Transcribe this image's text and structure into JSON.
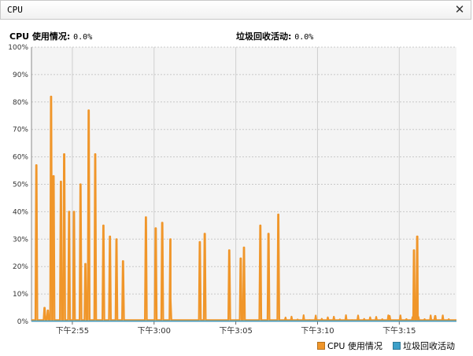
{
  "window": {
    "title": "CPU",
    "close_symbol": "✕"
  },
  "stats": {
    "cpu_label": "CPU 使用情况:",
    "cpu_value": "0.0%",
    "gc_label": "垃圾回收活动:",
    "gc_value": "0.0%"
  },
  "colors": {
    "cpu": "#f0962a",
    "gc": "#3da0c9",
    "plot_bg": "#f4f4f4",
    "grid": "#c8c8c8"
  },
  "chart_data": {
    "type": "line",
    "title": "",
    "xlabel": "",
    "ylabel": "",
    "ylim": [
      0,
      100
    ],
    "yticks": [
      "0%",
      "10%",
      "20%",
      "30%",
      "40%",
      "50%",
      "60%",
      "70%",
      "80%",
      "90%",
      "100%"
    ],
    "x_unit": "minutes",
    "xlim": [
      52.5,
      78.5
    ],
    "xticks": [
      {
        "value": 55,
        "label": "下午2:55"
      },
      {
        "value": 60,
        "label": "下午3:00"
      },
      {
        "value": 65,
        "label": "下午3:05"
      },
      {
        "value": 70,
        "label": "下午3:10"
      },
      {
        "value": 75,
        "label": "下午3:15"
      }
    ],
    "legend_position": "bottom-right",
    "series": [
      {
        "name": "CPU 使用情况",
        "peaks": [
          [
            52.8,
            57
          ],
          [
            53.3,
            5
          ],
          [
            53.5,
            4
          ],
          [
            53.7,
            82
          ],
          [
            53.85,
            53
          ],
          [
            54.3,
            51
          ],
          [
            54.5,
            61
          ],
          [
            54.8,
            40
          ],
          [
            55.1,
            40
          ],
          [
            55.5,
            50
          ],
          [
            55.8,
            21
          ],
          [
            56.0,
            77
          ],
          [
            56.4,
            61
          ],
          [
            56.9,
            35
          ],
          [
            57.3,
            31
          ],
          [
            57.7,
            30
          ],
          [
            58.1,
            22
          ],
          [
            59.5,
            38
          ],
          [
            60.1,
            34
          ],
          [
            60.5,
            36
          ],
          [
            61.0,
            30
          ],
          [
            61.0,
            8
          ],
          [
            62.8,
            29
          ],
          [
            63.1,
            32
          ],
          [
            64.6,
            26
          ],
          [
            65.3,
            23
          ],
          [
            65.5,
            27
          ],
          [
            66.5,
            35
          ],
          [
            67.0,
            32
          ],
          [
            67.6,
            39
          ],
          [
            74.4,
            2
          ],
          [
            75.9,
            26
          ],
          [
            76.1,
            31
          ],
          [
            77.2,
            2
          ]
        ],
        "baseline": 0.5
      },
      {
        "name": "垃圾回收活动",
        "values": 0
      }
    ]
  },
  "legend": {
    "cpu": "CPU 使用情况",
    "gc": "垃圾回收活动"
  }
}
